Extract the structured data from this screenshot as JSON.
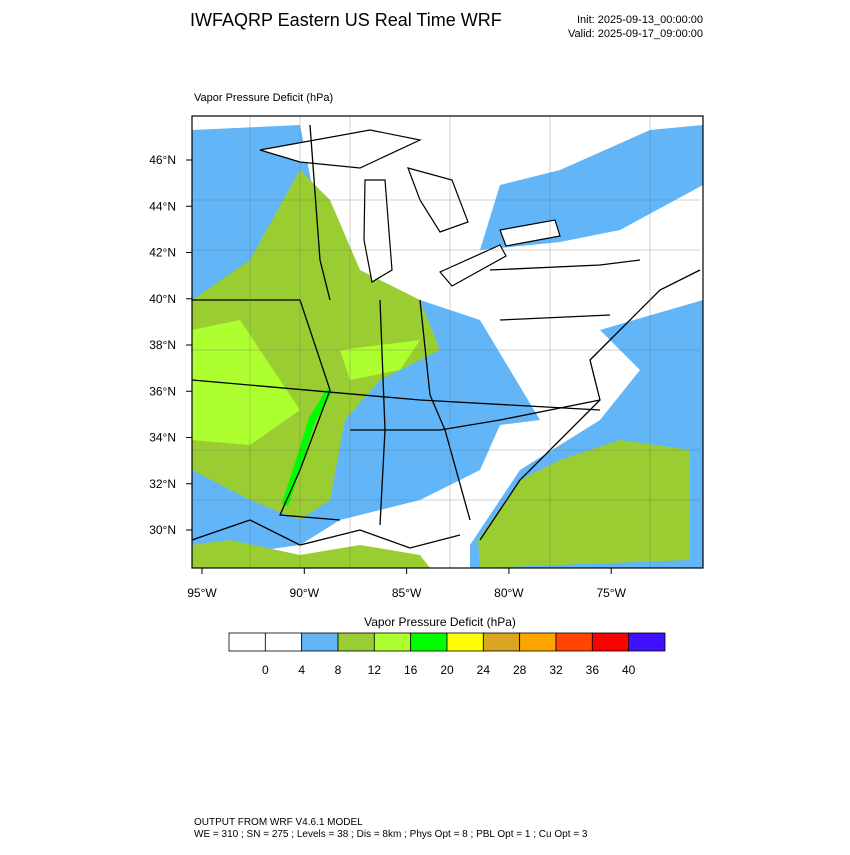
{
  "header": {
    "title": "IWFAQRP Eastern US Real Time WRF",
    "init": "Init: 2025-09-13_00:00:00",
    "valid": "Valid: 2025-09-17_09:00:00"
  },
  "map": {
    "subtitle": "Vapor Pressure Deficit   (hPa)",
    "lat_labels": [
      "46°N",
      "44°N",
      "42°N",
      "40°N",
      "38°N",
      "36°N",
      "34°N",
      "32°N",
      "30°N"
    ],
    "lon_labels": [
      "95°W",
      "90°W",
      "85°W",
      "80°W",
      "75°W"
    ]
  },
  "colorbar": {
    "title": "Vapor Pressure Deficit  (hPa)",
    "labels": [
      "0",
      "4",
      "8",
      "12",
      "16",
      "20",
      "24",
      "28",
      "32",
      "36",
      "40"
    ],
    "colors": [
      "#ffffff",
      "#ffffff",
      "#62b6f7",
      "#9acd32",
      "#adff2f",
      "#00ff00",
      "#ffff00",
      "#daa520",
      "#ffa500",
      "#ff4500",
      "#ff0000",
      "#4010ff"
    ]
  },
  "footer": {
    "line1": "OUTPUT FROM WRF V4.6.1 MODEL",
    "line2": "WE = 310 ; SN = 275 ; Levels = 38 ; Dis = 8km ; Phys Opt = 8 ; PBL Opt = 1 ; Cu Opt = 3"
  }
}
